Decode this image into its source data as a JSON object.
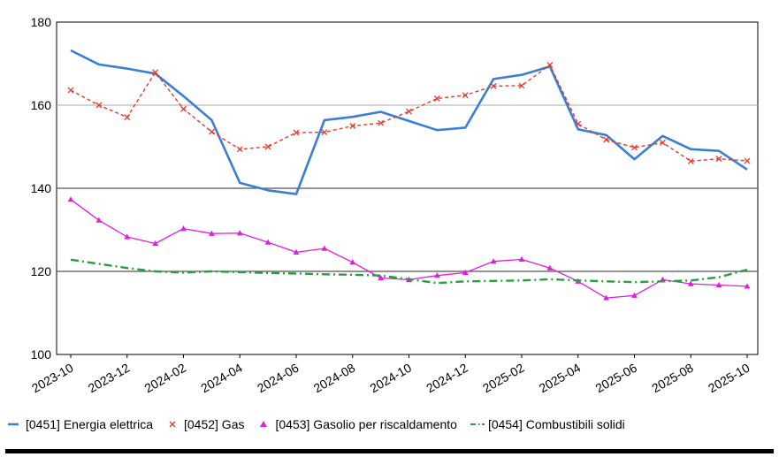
{
  "chart_data": {
    "type": "line",
    "title": "",
    "xlabel": "",
    "ylabel": "",
    "ylim": [
      100,
      180
    ],
    "yticks": [
      100,
      120,
      140,
      160,
      180
    ],
    "x": [
      "2023-10",
      "2023-11",
      "2023-12",
      "2024-01",
      "2024-02",
      "2024-03",
      "2024-04",
      "2024-05",
      "2024-06",
      "2024-07",
      "2024-08",
      "2024-09",
      "2024-10",
      "2024-11",
      "2024-12",
      "2025-01",
      "2025-02",
      "2025-03",
      "2025-04",
      "2025-05",
      "2025-06",
      "2025-07",
      "2025-08",
      "2025-09",
      "2025-10"
    ],
    "xticks": [
      "2023-10",
      "2023-12",
      "2024-02",
      "2024-04",
      "2024-06",
      "2024-08",
      "2024-10",
      "2024-12",
      "2025-02",
      "2025-04",
      "2025-06",
      "2025-08",
      "2025-10"
    ],
    "grid": "horizontal",
    "series": [
      {
        "name": "[0451] Energia elettrica",
        "color": "#3a7fd5",
        "style": "solid",
        "marker": "none",
        "values": [
          173.2,
          169.8,
          168.8,
          167.6,
          162.2,
          156.4,
          141.3,
          139.5,
          138.6,
          156.4,
          157.2,
          158.4,
          156.2,
          154.0,
          154.6,
          166.3,
          167.3,
          169.3,
          154.2,
          152.8,
          147.0,
          152.6,
          149.4,
          149.0,
          144.5
        ]
      },
      {
        "name": "[0452] Gas",
        "color": "#e53b2c",
        "style": "dashed",
        "marker": "x",
        "values": [
          163.6,
          160.0,
          157.1,
          167.9,
          159.1,
          153.6,
          149.4,
          150.0,
          153.4,
          153.5,
          155.0,
          155.7,
          158.5,
          161.6,
          162.4,
          164.6,
          164.7,
          169.7,
          155.5,
          151.7,
          149.8,
          151.0,
          146.5,
          147.1,
          146.6
        ]
      },
      {
        "name": "[0453] Gasolio per riscaldamento",
        "color": "#e01ee0",
        "style": "solid",
        "marker": "triangle",
        "values": [
          137.3,
          132.3,
          128.3,
          126.7,
          130.3,
          129.1,
          129.2,
          127.0,
          124.6,
          125.5,
          122.2,
          118.4,
          118.0,
          119.0,
          119.7,
          122.4,
          122.9,
          120.8,
          117.6,
          113.6,
          114.2,
          118.0,
          117.0,
          116.7,
          116.4
        ]
      },
      {
        "name": "[0454] Combustibili solidi",
        "color": "#2a9d3c",
        "style": "dashdot",
        "marker": "none",
        "values": [
          122.8,
          121.8,
          120.8,
          120.0,
          119.7,
          120.0,
          119.8,
          119.6,
          119.5,
          119.3,
          119.2,
          119.0,
          118.1,
          117.2,
          117.6,
          117.7,
          117.8,
          118.1,
          117.8,
          117.6,
          117.4,
          117.6,
          117.8,
          118.6,
          120.4
        ]
      }
    ]
  },
  "legend": {
    "items": [
      {
        "label": "[0451] Energia elettrica",
        "symbol": "—",
        "color": "#3a7fd5"
      },
      {
        "label": "[0452] Gas",
        "symbol": "×",
        "color": "#e53b2c"
      },
      {
        "label": "[0453] Gasolio per riscaldamento",
        "symbol": "▲",
        "color": "#e01ee0"
      },
      {
        "label": "[0454] Combustibili solidi",
        "symbol": "-·",
        "color": "#2a9d3c"
      }
    ]
  }
}
